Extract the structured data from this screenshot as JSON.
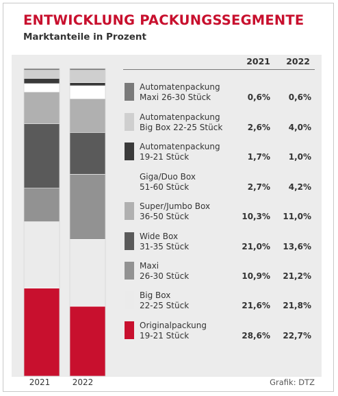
{
  "header": {
    "title": "ENTWICKLUNG PACKUNGSSEGMENTE",
    "subtitle": "Marktanteile in Prozent"
  },
  "credit": "Grafik: DTZ",
  "chart_data": {
    "type": "bar",
    "stacked": true,
    "categories": [
      "2021",
      "2022"
    ],
    "column_headers": [
      "2021",
      "2022"
    ],
    "series": [
      {
        "name": "Automatenpackung Maxi 26-30 Stück",
        "line1": "Automatenpackung",
        "line2": "Maxi 26-30 Stück",
        "color": "#7a7a7a",
        "values": [
          0.6,
          0.6
        ],
        "labels": [
          "0,6%",
          "0,6%"
        ]
      },
      {
        "name": "Automatenpackung Big Box 22-25 Stück",
        "line1": "Automatenpackung",
        "line2": "Big Box 22-25 Stück",
        "color": "#cfcfcf",
        "values": [
          2.6,
          4.0
        ],
        "labels": [
          "2,6%",
          "4,0%"
        ]
      },
      {
        "name": "Automatenpackung 19-21 Stück",
        "line1": "Automatenpackung",
        "line2": "19-21 Stück",
        "color": "#3a3a3a",
        "values": [
          1.7,
          1.0
        ],
        "labels": [
          "1,7%",
          "1,0%"
        ]
      },
      {
        "name": "Giga/Duo Box 51-60 Stück",
        "line1": "Giga/Duo Box",
        "line2": "51-60 Stück",
        "color": "#ffffff",
        "values": [
          2.7,
          4.2
        ],
        "labels": [
          "2,7%",
          "4,2%"
        ]
      },
      {
        "name": "Super/Jumbo Box 36-50 Stück",
        "line1": "Super/Jumbo Box",
        "line2": "36-50 Stück",
        "color": "#b0b0b0",
        "values": [
          10.3,
          11.0
        ],
        "labels": [
          "10,3%",
          "11,0%"
        ]
      },
      {
        "name": "Wide Box 31-35 Stück",
        "line1": "Wide Box",
        "line2": "31-35 Stück",
        "color": "#5a5a5a",
        "values": [
          21.0,
          13.6
        ],
        "labels": [
          "21,0%",
          "13,6%"
        ]
      },
      {
        "name": "Maxi 26-30 Stück",
        "line1": "Maxi",
        "line2": "26-30 Stück",
        "color": "#929292",
        "values": [
          10.9,
          21.2
        ],
        "labels": [
          "10,9%",
          "21,2%"
        ]
      },
      {
        "name": "Big Box 22-25 Stück",
        "line1": "Big Box",
        "line2": "22-25 Stück",
        "color": "#ebebeb",
        "values": [
          21.6,
          21.8
        ],
        "labels": [
          "21,6%",
          "21,8%"
        ]
      },
      {
        "name": "Originalpackung 19-21 Stück",
        "line1": "Originalpackung",
        "line2": "19-21 Stück",
        "color": "#c8102e",
        "values": [
          28.6,
          22.7
        ],
        "labels": [
          "28,6%",
          "22,7%"
        ]
      }
    ]
  }
}
